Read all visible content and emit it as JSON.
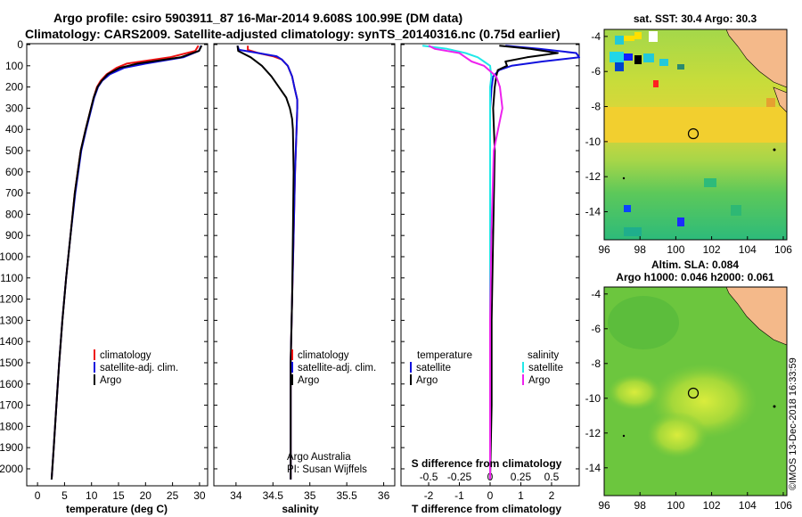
{
  "header": {
    "line1": "Argo profile: csiro 5903911_87 16-Mar-2014 9.608S 100.99E (DM data)",
    "line2": "Climatology: CARS2009. Satellite-adjusted climatology: synTS_20140316.nc (0.75d earlier)"
  },
  "colors": {
    "climatology": "#ee1111",
    "satellite": "#1111dd",
    "argo": "#000000",
    "salinity_sat": "#22e8e8",
    "salinity_argo": "#ee22ee",
    "land": "#f4b98a"
  },
  "chart_data": [
    {
      "type": "line",
      "title": "",
      "xlabel": "temperature (deg C)",
      "ylabel": "",
      "xlim": [
        -2,
        31.5
      ],
      "ylim": [
        2080,
        0
      ],
      "xticks": [
        "0",
        "5",
        "10",
        "15",
        "20",
        "25",
        "30"
      ],
      "yticks": [
        "0",
        "100",
        "200",
        "300",
        "400",
        "500",
        "600",
        "700",
        "800",
        "900",
        "1000",
        "1100",
        "1200",
        "1300",
        "1400",
        "1500",
        "1600",
        "1700",
        "1800",
        "1900",
        "2000"
      ],
      "legend": [
        "climatology",
        "satellite-adj. clim.",
        "Argo"
      ],
      "series": [
        {
          "name": "climatology",
          "pressure": [
            5,
            30,
            60,
            90,
            110,
            140,
            170,
            200,
            250,
            300,
            400,
            500,
            700,
            900,
            1100,
            1300,
            1500,
            1700,
            1900,
            2050
          ],
          "values": [
            29.8,
            29.2,
            24.5,
            16.5,
            14.6,
            12.8,
            11.7,
            11.0,
            10.4,
            9.9,
            8.9,
            8.0,
            6.9,
            6.1,
            5.3,
            4.6,
            4.0,
            3.5,
            3.0,
            2.6
          ]
        },
        {
          "name": "satellite-adj. clim.",
          "pressure": [
            5,
            30,
            60,
            90,
            110,
            140,
            170,
            200,
            250,
            300,
            400,
            500,
            700,
            900,
            1100,
            1300,
            1500,
            1700,
            1900,
            2050
          ],
          "values": [
            30.3,
            29.9,
            27.0,
            20.0,
            16.0,
            13.4,
            12.0,
            11.2,
            10.5,
            10.0,
            9.0,
            8.1,
            7.0,
            6.1,
            5.3,
            4.6,
            4.0,
            3.5,
            3.0,
            2.6
          ]
        },
        {
          "name": "Argo",
          "pressure": [
            5,
            30,
            60,
            90,
            110,
            140,
            170,
            200,
            250,
            300,
            400,
            500,
            700,
            900,
            1100,
            1300,
            1500,
            1700,
            1900,
            2050
          ],
          "values": [
            30.4,
            29.9,
            26.5,
            18.5,
            15.2,
            13.0,
            11.9,
            11.1,
            10.4,
            9.9,
            8.9,
            8.0,
            6.9,
            6.1,
            5.3,
            4.6,
            4.0,
            3.5,
            3.0,
            2.6
          ]
        }
      ]
    },
    {
      "type": "line",
      "title": "",
      "xlabel": "salinity",
      "ylabel": "",
      "xlim": [
        33.7,
        36.15
      ],
      "ylim": [
        2080,
        0
      ],
      "xticks": [
        "34",
        "34.5",
        "35",
        "35.5",
        "36"
      ],
      "legend": [
        "climatology",
        "satellite-adj. clim.",
        "Argo"
      ],
      "annotations": [
        "Argo Australia",
        "PI: Susan Wijffels"
      ],
      "series": [
        {
          "name": "climatology",
          "pressure": [
            5,
            25,
            40,
            55,
            70,
            100,
            150,
            200,
            260,
            300,
            400,
            600,
            900,
            1200,
            1500,
            1800,
            2050
          ],
          "values": [
            34.16,
            34.16,
            34.3,
            34.5,
            34.62,
            34.7,
            34.76,
            34.79,
            34.83,
            34.83,
            34.82,
            34.8,
            34.78,
            34.76,
            34.74,
            34.74,
            34.74
          ]
        },
        {
          "name": "satellite-adj. clim.",
          "pressure": [
            5,
            25,
            40,
            55,
            70,
            100,
            150,
            200,
            260,
            300,
            400,
            600,
            900,
            1200,
            1500,
            1800,
            2050
          ],
          "values": [
            34.02,
            34.04,
            34.3,
            34.55,
            34.62,
            34.7,
            34.76,
            34.79,
            34.83,
            34.83,
            34.82,
            34.8,
            34.78,
            34.76,
            34.74,
            34.74,
            34.74
          ]
        },
        {
          "name": "Argo",
          "pressure": [
            5,
            30,
            60,
            100,
            150,
            200,
            250,
            300,
            350,
            400,
            600,
            900,
            1200,
            1500,
            1800,
            2050
          ],
          "values": [
            34.02,
            34.03,
            34.2,
            34.35,
            34.48,
            34.58,
            34.68,
            34.73,
            34.76,
            34.77,
            34.78,
            34.77,
            34.76,
            34.74,
            34.74,
            34.74
          ]
        }
      ]
    },
    {
      "type": "line",
      "title": "",
      "xlabel": "T difference from climatology",
      "ylabel": "",
      "xlim": [
        -2.9,
        2.9
      ],
      "ylim": [
        2080,
        0
      ],
      "xticks": [
        "-2",
        "-1",
        "0",
        "1",
        "2"
      ],
      "secondary_xlabel": "S difference from climatology",
      "secondary_xticks": [
        "-0.5",
        "-0.25",
        "0",
        "0.25",
        "0.5"
      ],
      "legend_left_title": "temperature",
      "legend_right_title": "salinity",
      "legend": [
        "satellite",
        "Argo",
        "satellite",
        "Argo"
      ],
      "series": [
        {
          "name": "temperature satellite",
          "pressure": [
            5,
            20,
            40,
            60,
            80,
            100,
            120,
            150,
            200,
            300,
            500,
            900,
            1300,
            1700,
            2050
          ],
          "values": [
            0.5,
            1.6,
            2.8,
            2.9,
            1.7,
            0.7,
            0.3,
            0.1,
            0.05,
            0.0,
            0.0,
            0.0,
            0.0,
            0.0,
            0.0
          ]
        },
        {
          "name": "temperature Argo",
          "pressure": [
            5,
            20,
            40,
            60,
            80,
            100,
            120,
            150,
            200,
            300,
            500,
            900,
            1300,
            1700,
            2050
          ],
          "values": [
            0.3,
            1.3,
            2.2,
            1.2,
            0.5,
            0.55,
            0.25,
            0.2,
            0.15,
            0.1,
            0.15,
            0.1,
            0.05,
            0.05,
            0.0
          ]
        },
        {
          "name": "salinity satellite",
          "pressure": [
            5,
            20,
            40,
            60,
            80,
            100,
            150,
            200,
            300,
            500,
            900,
            1300,
            1700,
            2050
          ],
          "values": [
            -0.55,
            -0.35,
            -0.2,
            -0.1,
            -0.05,
            0.0,
            0.01,
            0.0,
            0.0,
            0.0,
            0.0,
            0.0,
            0.0,
            0.0
          ]
        },
        {
          "name": "salinity Argo",
          "pressure": [
            5,
            20,
            40,
            60,
            80,
            100,
            150,
            200,
            300,
            500,
            900,
            1300,
            1700,
            2050
          ],
          "values": [
            -0.5,
            -0.45,
            -0.25,
            -0.2,
            -0.15,
            -0.05,
            0.05,
            0.08,
            0.1,
            0.03,
            0.01,
            0.0,
            0.0,
            0.0
          ]
        }
      ]
    },
    {
      "type": "heatmap",
      "title": "sat. SST: 30.4 Argo: 30.3",
      "xticks": [
        "96",
        "98",
        "100",
        "102",
        "104",
        "106"
      ],
      "yticks": [
        "-4",
        "-6",
        "-8",
        "-10",
        "-12",
        "-14"
      ],
      "xlim": [
        96,
        106.2
      ],
      "ylim": [
        -15.6,
        -3.6
      ],
      "marker": {
        "lon": 100.99,
        "lat": -9.608
      }
    },
    {
      "type": "heatmap",
      "title": "Altim. SLA: 0.084",
      "subtitle": "Argo h1000: 0.046 h2000: 0.061",
      "xticks": [
        "96",
        "98",
        "100",
        "102",
        "104",
        "106"
      ],
      "yticks": [
        "-4",
        "-6",
        "-8",
        "-10",
        "-12",
        "-14"
      ],
      "xlim": [
        96,
        106.2
      ],
      "ylim": [
        -15.6,
        -3.6
      ],
      "marker": {
        "lon": 100.99,
        "lat": -9.608
      }
    }
  ],
  "footer": {
    "credit": "©IMOS 13-Dec-2018 16:33:59"
  }
}
